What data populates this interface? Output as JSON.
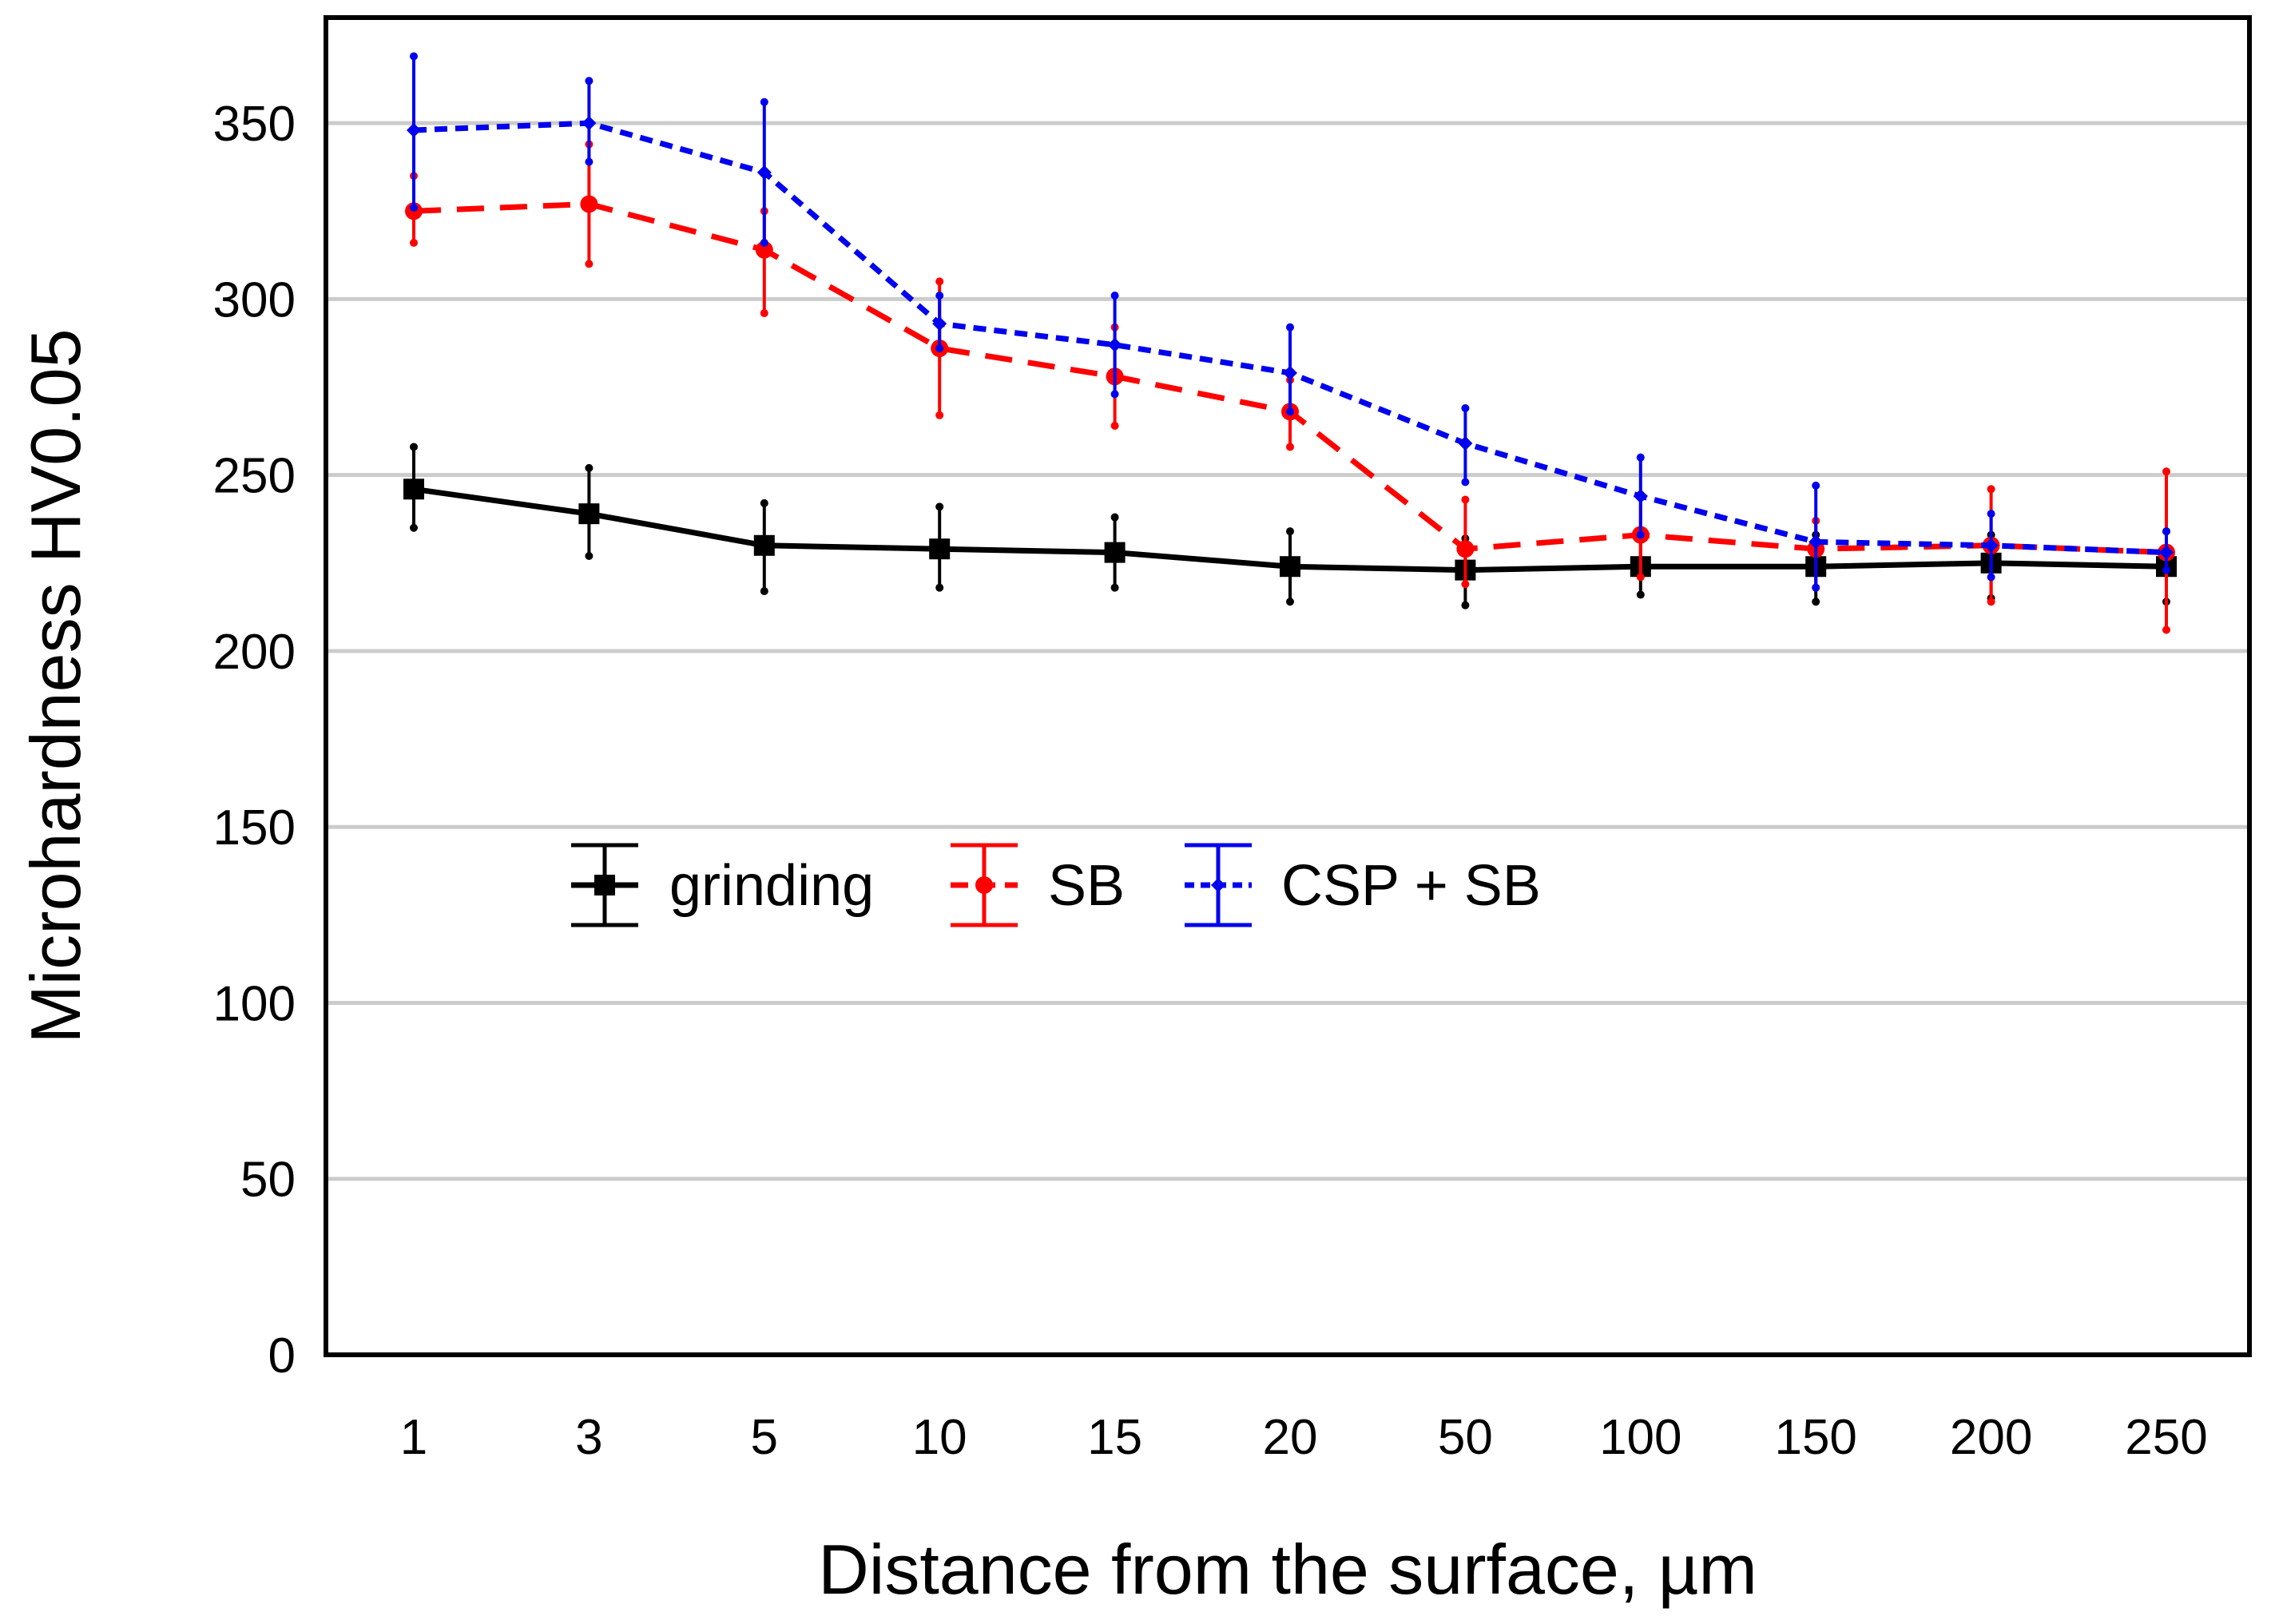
{
  "chart_data": {
    "type": "line",
    "title": "",
    "xlabel": "Distance from the surface, µm",
    "ylabel": "Microhardness HV0.05",
    "categories": [
      "1",
      "3",
      "5",
      "10",
      "15",
      "20",
      "50",
      "100",
      "150",
      "200",
      "250"
    ],
    "ylim": [
      0,
      380
    ],
    "yticks": [
      0,
      50,
      100,
      150,
      200,
      250,
      300,
      350
    ],
    "ytick_labels": [
      "0",
      "50",
      "100",
      "150",
      "200",
      "250",
      "300",
      "350"
    ],
    "grid": "horizontal",
    "legend_position": "center-left",
    "series": [
      {
        "name": "grinding",
        "color": "#000000",
        "line_style": "solid",
        "marker": "square",
        "values": [
          246,
          239,
          230,
          229,
          228,
          224,
          223,
          224,
          224,
          225,
          224
        ],
        "err_low": [
          235,
          227,
          217,
          218,
          218,
          214,
          213,
          216,
          214,
          215,
          214
        ],
        "err_high": [
          258,
          252,
          242,
          241,
          238,
          234,
          232,
          232,
          233,
          233,
          234
        ]
      },
      {
        "name": "SB",
        "color": "#ff0000",
        "line_style": "dashed",
        "marker": "circle",
        "values": [
          325,
          327,
          314,
          286,
          278,
          268,
          229,
          233,
          229,
          230,
          228
        ],
        "err_low": [
          316,
          310,
          296,
          267,
          264,
          258,
          219,
          221,
          218,
          214,
          206
        ],
        "err_high": [
          335,
          344,
          325,
          305,
          292,
          277,
          243,
          244,
          237,
          246,
          251
        ]
      },
      {
        "name": "CSP + SB",
        "color": "#0000ee",
        "line_style": "dotted",
        "marker": "diamond",
        "values": [
          348,
          350,
          336,
          293,
          287,
          279,
          259,
          244,
          231,
          230,
          228
        ],
        "err_low": [
          326,
          339,
          316,
          286,
          273,
          268,
          248,
          233,
          218,
          221,
          223
        ],
        "err_high": [
          369,
          362,
          356,
          301,
          301,
          292,
          269,
          255,
          247,
          239,
          234
        ]
      }
    ]
  }
}
